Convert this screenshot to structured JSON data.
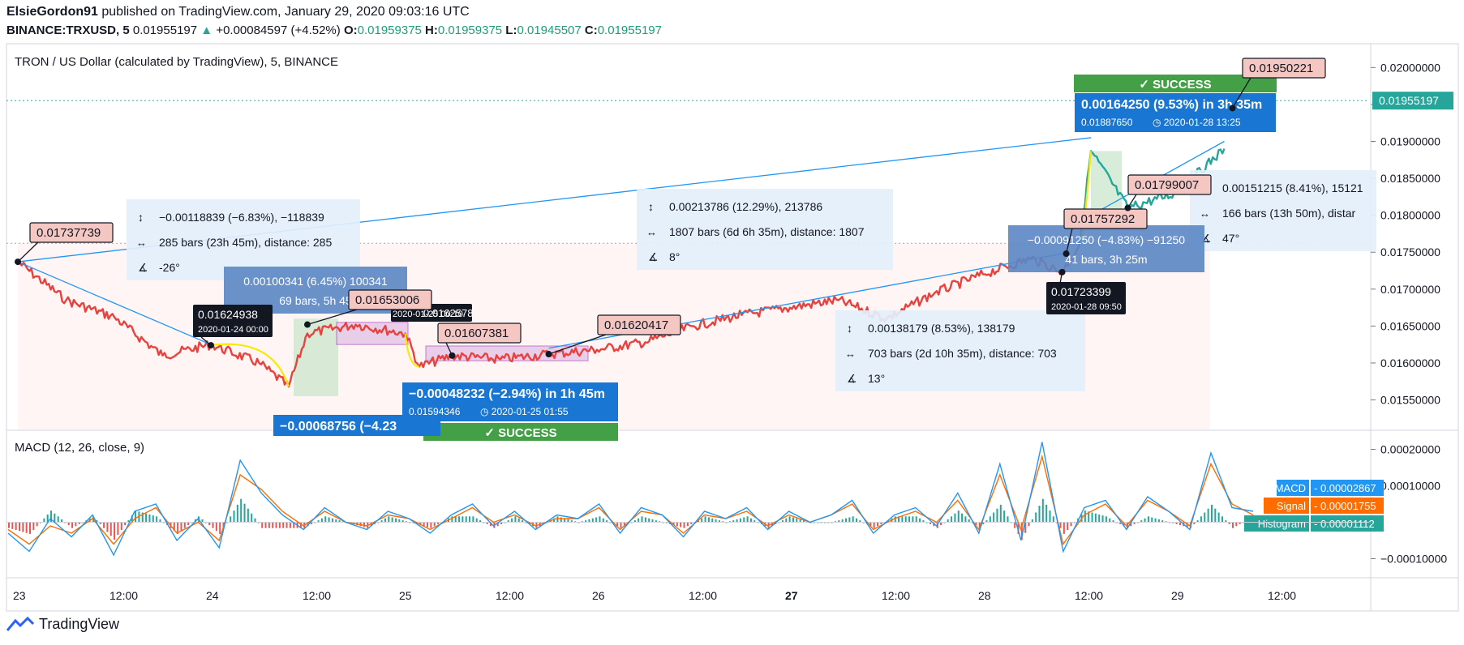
{
  "header": {
    "author": "ElsieGordon91",
    "published_text": "published on TradingView.com, January 29, 2020 09:03:16 UTC",
    "symbol": "BINANCE:TRXUSD, 5",
    "last_price": "0.01955197",
    "change": "+0.00084597 (+4.52%)",
    "open_label": "O:",
    "open": "0.01959375",
    "high_label": "H:",
    "high": "0.01959375",
    "low_label": "L:",
    "low": "0.01945507",
    "close_label": "C:",
    "close": "0.01955197"
  },
  "chart_title": "TRON / US Dollar (calculated by TradingView), 5, BINANCE",
  "macd_title": "MACD (12, 26, close, 9)",
  "footer_brand": "TradingView",
  "colors": {
    "price_line": "#e8423f",
    "price_line_recent": "#26a69a",
    "macd_line": "#2196f3",
    "signal_line": "#ff6d00",
    "histogram_up": "#26a69a",
    "histogram_down": "#ef5350",
    "trend_line": "#2196f3",
    "success": "#43a047",
    "label_pink": "#f4c7c3"
  },
  "chart_data": [
    {
      "type": "line",
      "title": "TRON / US Dollar (calculated by TradingView), 5, BINANCE",
      "x_ticks": [
        "23",
        "12:00",
        "24",
        "12:00",
        "25",
        "12:00",
        "26",
        "12:00",
        "27",
        "12:00",
        "28",
        "12:00",
        "29",
        "12:00"
      ],
      "y_ticks": [
        "0.02000000",
        "0.01950000",
        "0.01900000",
        "0.01850000",
        "0.01800000",
        "0.01750000",
        "0.01700000",
        "0.01650000",
        "0.01600000",
        "0.01550000"
      ],
      "ylim": [
        0.0151,
        0.0203
      ],
      "current_price": "0.01955197",
      "series": [
        {
          "name": "TRXUSD",
          "x": [
            "01-23 00:00",
            "01-23 06:00",
            "01-23 12:00",
            "01-23 18:00",
            "01-24 00:00",
            "01-24 06:00",
            "01-24 09:40",
            "01-24 12:00",
            "01-24 18:00",
            "01-25 00:10",
            "01-25 01:55",
            "01-25 06:00",
            "01-25 12:00",
            "01-25 18:00",
            "01-26 00:00",
            "01-26 06:00",
            "01-26 12:00",
            "01-26 18:00",
            "01-27 00:00",
            "01-27 06:00",
            "01-27 12:00",
            "01-27 18:00",
            "01-28 00:00",
            "01-28 06:00",
            "01-28 09:50",
            "01-28 12:00",
            "01-28 13:25",
            "01-28 18:00",
            "01-29 00:00",
            "01-29 06:00"
          ],
          "y": [
            0.01737,
            0.01685,
            0.01662,
            0.0161,
            0.01625,
            0.016,
            0.01568,
            0.0164,
            0.01652,
            0.0164,
            0.01595,
            0.0161,
            0.01605,
            0.01612,
            0.01618,
            0.01628,
            0.0165,
            0.01665,
            0.01675,
            0.01685,
            0.0166,
            0.01695,
            0.0172,
            0.01742,
            0.01723,
            0.0176,
            0.01887,
            0.0181,
            0.0183,
            0.0189
          ]
        }
      ],
      "labels": [
        {
          "text": "0.01737739"
        },
        {
          "text": "0.01624938",
          "date": "2020-01-24 00:00"
        },
        {
          "text": "0.01653006"
        },
        {
          "text": "0.01607381"
        },
        {
          "text": "0.01620417"
        },
        {
          "text": "0.01723399",
          "date": "2020-01-28 09:50"
        },
        {
          "text": "0.01757292"
        },
        {
          "text": "0.01799007"
        },
        {
          "text": "0.01950221"
        },
        {
          "text": "0.01594346",
          "date": "2020-01-25 01:55"
        },
        {
          "text": "0.01887650",
          "date": "2020-01-28 13:25"
        }
      ],
      "annotations": {
        "ruler1": {
          "price": "−0.00118839 (−6.83%), −118839",
          "bars": "285 bars (23h 45m), distance: 285",
          "angle": "-26°"
        },
        "ruler2": {
          "price": "0.00213786 (12.29%), 213786",
          "bars": "1807 bars (6d 6h 35m), distance: 1807",
          "angle": "8°"
        },
        "ruler3": {
          "price": "0.00138179 (8.53%), 138179",
          "bars": "703 bars (2d 10h 35m), distance: 703",
          "angle": "13°"
        },
        "ruler4": {
          "price": "0.00151215 (8.41%), 15121",
          "bars": "166 bars (13h 50m), distar",
          "angle": "47°"
        },
        "measure_a": {
          "line1": "0.00100341 (6.45%) 100341",
          "line2": "69 bars, 5h 45"
        },
        "measure_b": {
          "line1": "−0.00091250 (−4.83%) −91250",
          "line2": "41 bars, 3h 25m"
        },
        "measure_c_tag": "0.0162578",
        "measure_c_date": "2020-01-25 00:10",
        "blue_a": {
          "main": "−0.00048232 (−2.94%) in 1h 45m"
        },
        "blue_b": {
          "main": "0.00164250 (9.53%) in 3h 35m"
        },
        "blue_c": {
          "main": "−0.00068756 (−4.23"
        },
        "success_top": "SUCCESS",
        "success_bottom": "SUCCESS"
      }
    },
    {
      "type": "line",
      "title": "MACD (12, 26, close, 9)",
      "y_ticks": [
        "0.00020000",
        "0.00010000",
        "−0.00010000"
      ],
      "ylim": [
        -0.00015,
        0.00025
      ],
      "series": [
        {
          "name": "MACD",
          "last": "0.00002867"
        },
        {
          "name": "Signal",
          "last": "0.00001755"
        },
        {
          "name": "Histogram",
          "last": "0.00001112"
        }
      ],
      "macd": [
        -3e-05,
        -8e-05,
        1e-05,
        -4e-05,
        2e-05,
        -9e-05,
        3e-05,
        5e-05,
        -5e-05,
        1e-05,
        -7e-05,
        0.00017,
        8e-05,
        2e-05,
        -2e-05,
        4e-05,
        0.0,
        -2e-05,
        3e-05,
        1e-05,
        -3e-05,
        2e-05,
        5e-05,
        -1e-05,
        3e-05,
        -2e-05,
        2e-05,
        1e-05,
        5e-05,
        -3e-05,
        4e-05,
        2e-05,
        -4e-05,
        3e-05,
        1e-05,
        4e-05,
        -2e-05,
        3e-05,
        0.0,
        2e-05,
        6e-05,
        -3e-05,
        2e-05,
        4e-05,
        -1e-05,
        8e-05,
        -3e-05,
        0.00016,
        -5e-05,
        0.00022,
        -8e-05,
        4e-05,
        6e-05,
        -2e-05,
        7e-05,
        3e-05,
        -2e-05,
        0.00019,
        4e-05,
        3e-05
      ],
      "signal": [
        -2e-05,
        -6e-05,
        -1e-05,
        -3e-05,
        1e-05,
        -6e-05,
        1e-05,
        4e-05,
        -3e-05,
        0.0,
        -5e-05,
        0.00013,
        9e-05,
        3e-05,
        -1e-05,
        3e-05,
        0.0,
        -1e-05,
        2e-05,
        1e-05,
        -2e-05,
        1e-05,
        4e-05,
        0.0,
        2e-05,
        -1e-05,
        1e-05,
        1e-05,
        4e-05,
        -2e-05,
        3e-05,
        2e-05,
        -3e-05,
        2e-05,
        1e-05,
        3e-05,
        -1e-05,
        2e-05,
        0.0,
        2e-05,
        5e-05,
        -2e-05,
        1e-05,
        3e-05,
        0.0,
        6e-05,
        -2e-05,
        0.00013,
        -2e-05,
        0.00018,
        -6e-05,
        2e-05,
        5e-05,
        -1e-05,
        6e-05,
        3e-05,
        -1e-05,
        0.00016,
        5e-05,
        2e-05
      ]
    }
  ]
}
